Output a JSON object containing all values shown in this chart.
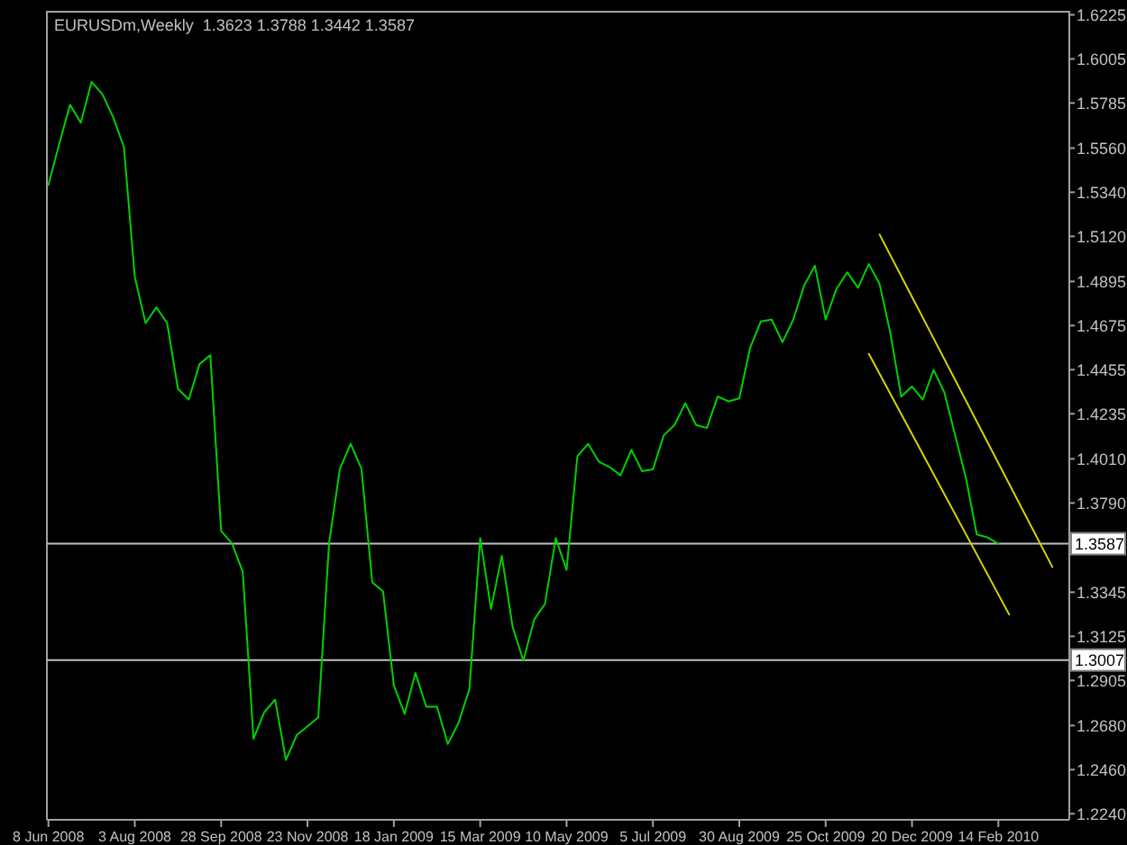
{
  "chart_data": {
    "type": "line",
    "title": "EURUSDm,Weekly  1.3623 1.3788 1.3442 1.3587",
    "xlim": [
      "2008-06-07",
      "2010-04-01"
    ],
    "xticks": [
      {
        "value": "2008-06-08",
        "label": "8 Jun 2008"
      },
      {
        "value": "2008-08-03",
        "label": "3 Aug 2008"
      },
      {
        "value": "2008-09-28",
        "label": "28 Sep 2008"
      },
      {
        "value": "2008-11-23",
        "label": "23 Nov 2008"
      },
      {
        "value": "2009-01-18",
        "label": "18 Jan 2009"
      },
      {
        "value": "2009-03-15",
        "label": "15 Mar 2009"
      },
      {
        "value": "2009-05-10",
        "label": "10 May 2009"
      },
      {
        "value": "2009-07-05",
        "label": "5 Jul 2009"
      },
      {
        "value": "2009-08-30",
        "label": "30 Aug 2009"
      },
      {
        "value": "2009-10-25",
        "label": "25 Oct 2009"
      },
      {
        "value": "2009-12-20",
        "label": "20 Dec 2009"
      },
      {
        "value": "2010-02-14",
        "label": "14 Feb 2010"
      }
    ],
    "ylim": [
      1.221,
      1.6245
    ],
    "yticks": [
      1.6225,
      1.6005,
      1.5785,
      {
        "value": 1.556,
        "label": "1.5560"
      },
      {
        "value": 1.534,
        "label": "1.5340"
      },
      {
        "value": 1.512,
        "label": "1.5120"
      },
      1.4895,
      1.4675,
      1.4455,
      1.4235,
      {
        "value": 1.401,
        "label": "1.4010"
      },
      {
        "value": 1.379,
        "label": "1.3790"
      },
      1.3345,
      1.3125,
      1.2905,
      {
        "value": 1.268,
        "label": "1.2680"
      },
      {
        "value": 1.246,
        "label": "1.2460"
      },
      {
        "value": 1.224,
        "label": "1.2240"
      }
    ],
    "ref_lines": [
      {
        "axis": "y",
        "value": 1.3587,
        "label": "1.3587",
        "color": "#c0c0c0"
      },
      {
        "axis": "y",
        "value": 1.3007,
        "label": "1.3007",
        "color": "#c0c0c0"
      }
    ],
    "series": [
      {
        "type": "line",
        "color": "#00d000",
        "x": [
          "2008-06-08",
          "2008-06-15",
          "2008-06-22",
          "2008-06-29",
          "2008-07-06",
          "2008-07-13",
          "2008-07-20",
          "2008-07-27",
          "2008-08-03",
          "2008-08-10",
          "2008-08-17",
          "2008-08-24",
          "2008-08-31",
          "2008-09-07",
          "2008-09-14",
          "2008-09-21",
          "2008-09-28",
          "2008-10-05",
          "2008-10-12",
          "2008-10-19",
          "2008-10-26",
          "2008-11-02",
          "2008-11-09",
          "2008-11-16",
          "2008-11-23",
          "2008-11-30",
          "2008-12-07",
          "2008-12-14",
          "2008-12-21",
          "2008-12-28",
          "2009-01-04",
          "2009-01-11",
          "2009-01-18",
          "2009-01-25",
          "2009-02-01",
          "2009-02-08",
          "2009-02-15",
          "2009-02-22",
          "2009-03-01",
          "2009-03-08",
          "2009-03-15",
          "2009-03-22",
          "2009-03-29",
          "2009-04-05",
          "2009-04-12",
          "2009-04-19",
          "2009-04-26",
          "2009-05-03",
          "2009-05-10",
          "2009-05-17",
          "2009-05-24",
          "2009-05-31",
          "2009-06-07",
          "2009-06-14",
          "2009-06-21",
          "2009-06-28",
          "2009-07-05",
          "2009-07-12",
          "2009-07-19",
          "2009-07-26",
          "2009-08-02",
          "2009-08-09",
          "2009-08-16",
          "2009-08-23",
          "2009-08-30",
          "2009-09-06",
          "2009-09-13",
          "2009-09-20",
          "2009-09-27",
          "2009-10-04",
          "2009-10-11",
          "2009-10-18",
          "2009-10-25",
          "2009-11-01",
          "2009-11-08",
          "2009-11-15",
          "2009-11-22",
          "2009-11-29",
          "2009-12-06",
          "2009-12-13",
          "2009-12-20",
          "2009-12-27",
          "2010-01-03",
          "2010-01-10",
          "2010-01-17",
          "2010-01-24",
          "2010-01-31",
          "2010-02-07",
          "2010-02-14"
        ],
        "values": [
          1.5377,
          1.5581,
          1.5776,
          1.5687,
          1.5891,
          1.5829,
          1.5714,
          1.5563,
          1.4917,
          1.4687,
          1.4766,
          1.4687,
          1.4359,
          1.4306,
          1.4483,
          1.4527,
          1.3651,
          1.3589,
          1.3447,
          1.2614,
          1.2747,
          1.2809,
          1.2508,
          1.2632,
          1.2676,
          1.2721,
          1.3589,
          1.3961,
          1.4085,
          1.3961,
          1.3394,
          1.3349,
          1.288,
          1.2738,
          1.2942,
          1.2774,
          1.2774,
          1.2588,
          1.2694,
          1.2862,
          1.3615,
          1.3261,
          1.3527,
          1.3172,
          1.3004,
          1.3208,
          1.3287,
          1.3615,
          1.3456,
          1.4023,
          1.4085,
          1.3996,
          1.3969,
          1.3928,
          1.4055,
          1.3949,
          1.3958,
          1.4127,
          1.4179,
          1.4288,
          1.4179,
          1.4164,
          1.4321,
          1.4297,
          1.4312,
          1.4563,
          1.4696,
          1.4705,
          1.4592,
          1.4705,
          1.4873,
          1.4974,
          1.4705,
          1.4858,
          1.4941,
          1.4864,
          1.4982,
          1.4882,
          1.4636,
          1.4321,
          1.4371,
          1.4306,
          1.4454,
          1.4341,
          1.4127,
          1.3914,
          1.3633,
          1.3618,
          1.3587
        ]
      },
      {
        "type": "line",
        "color": "#d4d400",
        "x": [
          "2009-11-29",
          "2010-03-21"
        ],
        "values": [
          1.5129,
          1.3471
        ]
      },
      {
        "type": "line",
        "color": "#d4d400",
        "x": [
          "2009-11-22",
          "2010-02-21"
        ],
        "values": [
          1.4534,
          1.3234
        ]
      }
    ]
  }
}
